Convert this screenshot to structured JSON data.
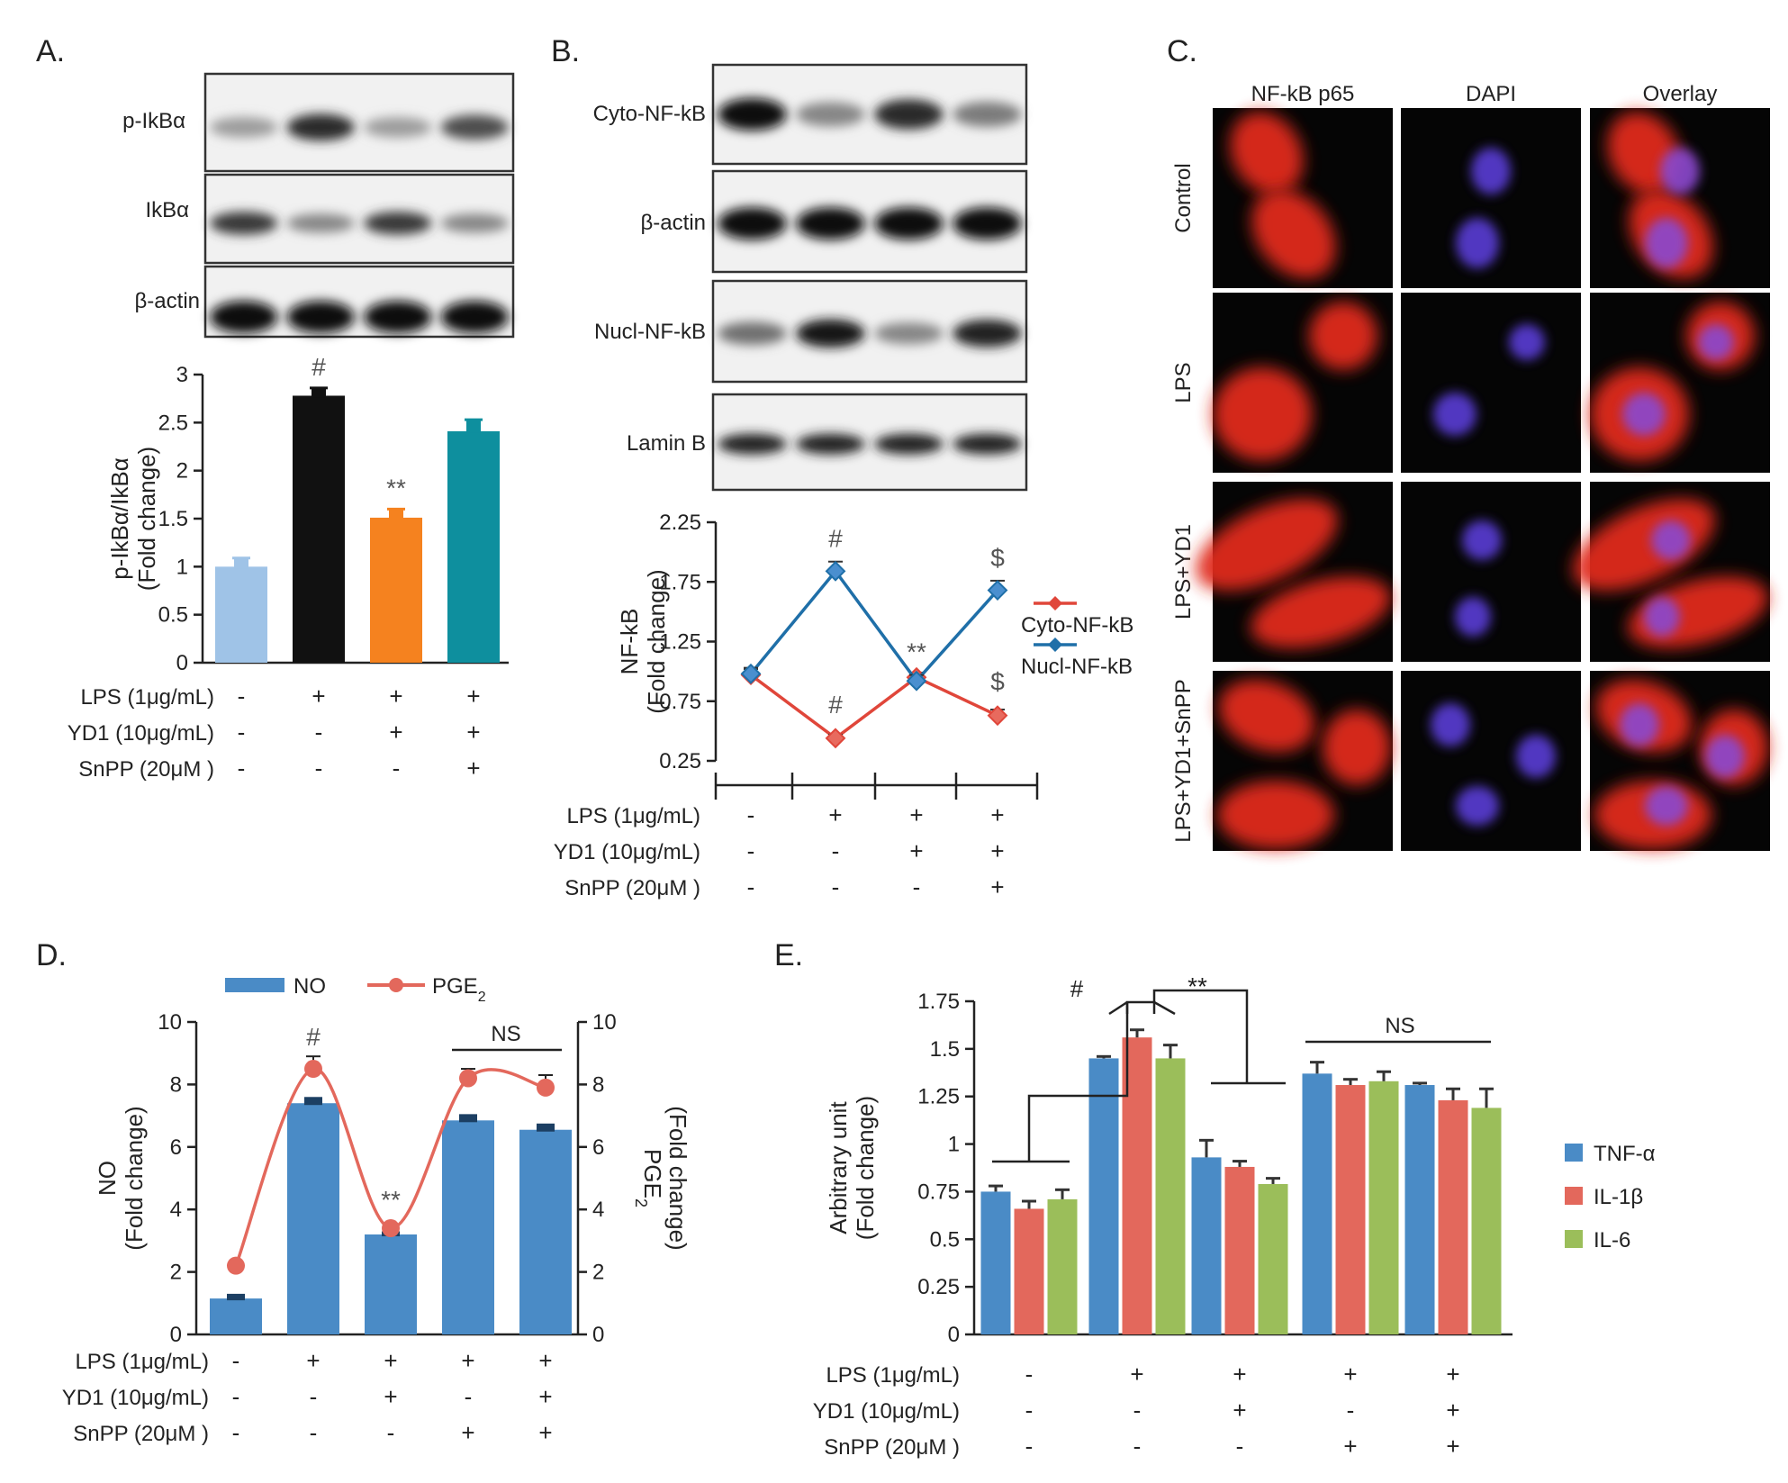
{
  "panels": {
    "A": {
      "letter": "A.",
      "blot_labels": [
        "p-IkBα",
        "IkBα",
        "β-actin"
      ]
    },
    "B": {
      "letter": "B.",
      "blot_labels": [
        "Cyto-NF-kB",
        "β-actin",
        "Nucl-NF-kB",
        "Lamin B"
      ]
    },
    "C": {
      "letter": "C.",
      "col_labels": [
        "NF-kB p65",
        "DAPI",
        "Overlay"
      ],
      "row_labels": [
        "Control",
        "LPS",
        "LPS+YD1",
        "LPS+YD1+SnPP"
      ]
    },
    "D": {
      "letter": "D."
    },
    "E": {
      "letter": "E."
    }
  },
  "chart_data": [
    {
      "id": "A",
      "type": "bar",
      "ylabel": [
        "p-IkBα/IkBα",
        "(Fold change)"
      ],
      "ylim": [
        0,
        3
      ],
      "yticks": [
        "0",
        "0.5",
        "1",
        "1.5",
        "2",
        "2.5",
        "3"
      ],
      "values": [
        1.0,
        2.78,
        1.51,
        2.41
      ],
      "errors": [
        0.09,
        0.08,
        0.09,
        0.12
      ],
      "colors": [
        "#9fc3e7",
        "#111111",
        "#f5821f",
        "#0e8f9e"
      ],
      "marks": [
        "",
        "#",
        "**",
        ""
      ],
      "conditions": [
        {
          "label": "LPS (1μg/mL)",
          "signs": [
            "-",
            "+",
            "+",
            "+"
          ]
        },
        {
          "label": "YD1 (10μg/mL)",
          "signs": [
            "-",
            "-",
            "+",
            "+"
          ]
        },
        {
          "label": "SnPP (20μM )",
          "signs": [
            "-",
            "-",
            "-",
            "+"
          ]
        }
      ]
    },
    {
      "id": "B",
      "type": "line",
      "ylabel": [
        "NF-kB",
        "(Fold change)"
      ],
      "ylim": [
        0.25,
        2.25
      ],
      "yticks": [
        "0.25",
        "0.75",
        "1.25",
        "1.75",
        "2.25"
      ],
      "series": [
        {
          "name": "Cyto-NF-kB",
          "color": "#e0463a",
          "values": [
            0.97,
            0.44,
            0.95,
            0.63
          ],
          "errors": [
            0.05,
            0.03,
            0.04,
            0.05
          ],
          "marks": [
            "",
            "#",
            "",
            "$"
          ]
        },
        {
          "name": "Nucl-NF-kB",
          "color": "#1f6fa8",
          "values": [
            0.98,
            1.84,
            0.92,
            1.68
          ],
          "errors": [
            0.05,
            0.08,
            0.05,
            0.08
          ],
          "marks": [
            "",
            "#",
            "**",
            "$"
          ]
        }
      ],
      "conditions": [
        {
          "label": "LPS (1μg/mL)",
          "signs": [
            "-",
            "+",
            "+",
            "+"
          ]
        },
        {
          "label": "YD1 (10μg/mL)",
          "signs": [
            "-",
            "-",
            "+",
            "+"
          ]
        },
        {
          "label": "SnPP (20μM )",
          "signs": [
            "-",
            "-",
            "-",
            "+"
          ]
        }
      ]
    },
    {
      "id": "D",
      "type": "bar",
      "ylabel": [
        "NO",
        "(Fold change)"
      ],
      "y2label": [
        "PGE2",
        "(Fold change)"
      ],
      "ylim": [
        0,
        10
      ],
      "yticks": [
        "0",
        "2",
        "4",
        "6",
        "8",
        "10"
      ],
      "series": [
        {
          "name": "NO",
          "color": "#4a8bc6",
          "values": [
            1.15,
            7.4,
            3.2,
            6.85,
            6.55
          ],
          "errors": [
            0.15,
            0.2,
            0.1,
            0.2,
            0.2
          ]
        },
        {
          "name": "PGE2",
          "color": "#e3685c",
          "values": [
            2.2,
            8.5,
            3.4,
            8.2,
            7.9
          ],
          "errors": [
            0.1,
            0.4,
            0.1,
            0.3,
            0.4
          ]
        }
      ],
      "marks": [
        "",
        "#",
        "**",
        "",
        ""
      ],
      "ns_label": "NS",
      "conditions": [
        {
          "label": "LPS (1μg/mL)",
          "signs": [
            "-",
            "+",
            "+",
            "+",
            "+"
          ]
        },
        {
          "label": "YD1 (10μg/mL)",
          "signs": [
            "-",
            "-",
            "+",
            "-",
            "+"
          ]
        },
        {
          "label": "SnPP (20μM )",
          "signs": [
            "-",
            "-",
            "-",
            "+",
            "+"
          ]
        }
      ]
    },
    {
      "id": "E",
      "type": "bar",
      "ylabel": [
        "Arbitrary unit",
        "(Fold change)"
      ],
      "ylim": [
        0,
        1.75
      ],
      "yticks": [
        "0",
        "0.25",
        "0.5",
        "0.75",
        "1",
        "1.25",
        "1.5",
        "1.75"
      ],
      "series": [
        {
          "name": "TNF-α",
          "color": "#4a8bc6",
          "values": [
            0.75,
            1.45,
            0.93,
            1.37,
            1.31
          ],
          "errors": [
            0.03,
            0.01,
            0.09,
            0.06,
            0.01
          ]
        },
        {
          "name": "IL-1β",
          "color": "#e3685c",
          "values": [
            0.66,
            1.56,
            0.88,
            1.31,
            1.23
          ],
          "errors": [
            0.04,
            0.04,
            0.03,
            0.03,
            0.06
          ]
        },
        {
          "name": "IL-6",
          "color": "#9bbe5a",
          "values": [
            0.71,
            1.45,
            0.79,
            1.33,
            1.19
          ],
          "errors": [
            0.05,
            0.07,
            0.03,
            0.05,
            0.1
          ]
        }
      ],
      "sig_marks": [
        "#",
        "**"
      ],
      "ns_label": "NS",
      "conditions": [
        {
          "label": "LPS (1μg/mL)",
          "signs": [
            "-",
            "+",
            "+",
            "+",
            "+"
          ]
        },
        {
          "label": "YD1 (10μg/mL)",
          "signs": [
            "-",
            "-",
            "+",
            "-",
            "+"
          ]
        },
        {
          "label": "SnPP (20μM )",
          "signs": [
            "-",
            "-",
            "-",
            "+",
            "+"
          ]
        }
      ]
    }
  ]
}
